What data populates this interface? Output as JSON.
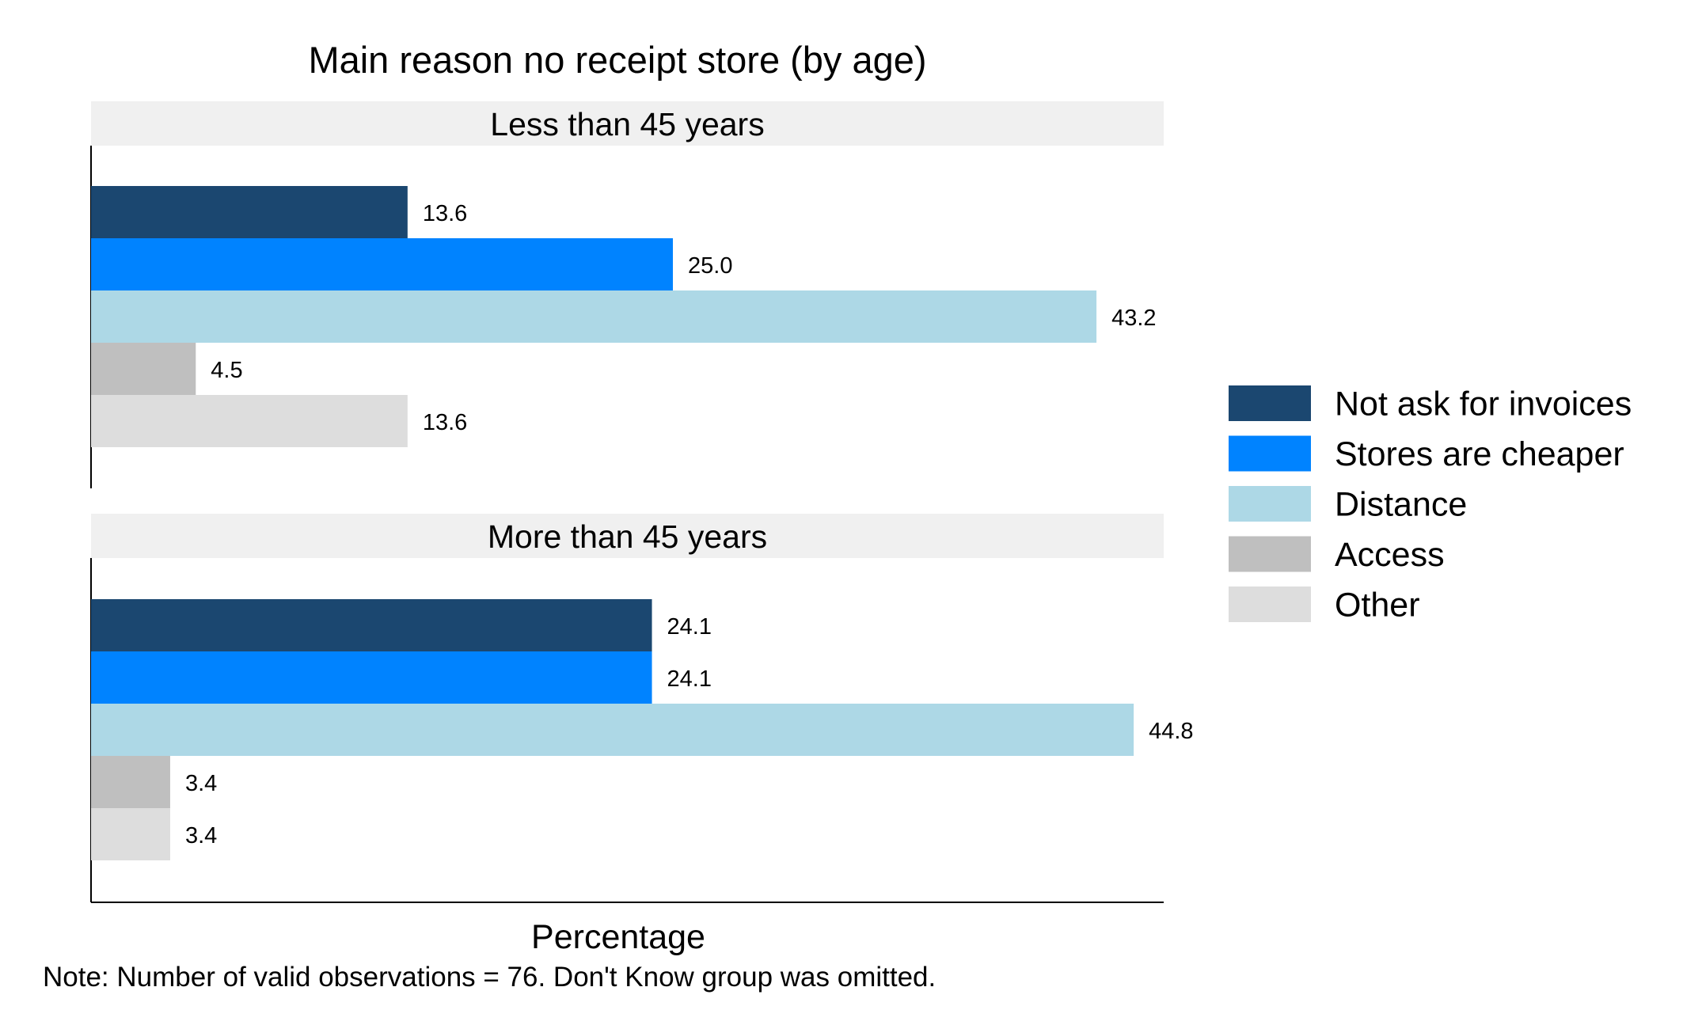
{
  "chart_data": {
    "type": "bar",
    "orientation": "horizontal",
    "title": "Main reason no receipt store (by age)",
    "xlabel": "Percentage",
    "ylabel": "",
    "note": "Note: Number of valid observations = 76. Don't Know group was omitted.",
    "xlim": [
      0,
      50
    ],
    "grid": false,
    "legend_position": "right",
    "categories": [
      "Not ask for invoices",
      "Stores are cheaper",
      "Distance",
      "Access",
      "Other"
    ],
    "colors": [
      "#1b4770",
      "#0083ff",
      "#add8e6",
      "#bfbfbf",
      "#dddddd"
    ],
    "panels": [
      {
        "label": "Less than 45 years",
        "values": [
          13.6,
          25.0,
          43.2,
          4.5,
          13.6
        ],
        "value_labels": [
          "13.6",
          "25.0",
          "43.2",
          "4.5",
          "13.6"
        ]
      },
      {
        "label": "More than 45 years",
        "values": [
          24.1,
          24.1,
          44.8,
          3.4,
          3.4
        ],
        "value_labels": [
          "24.1",
          "24.1",
          "44.8",
          "3.4",
          "3.4"
        ]
      }
    ]
  }
}
